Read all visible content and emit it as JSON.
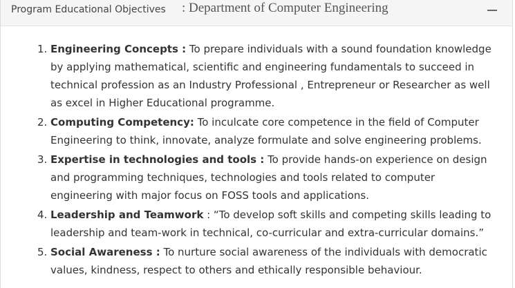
{
  "header": {
    "label": "Program Educational Objectives",
    "separator": ":",
    "department": "Department of Computer Engineering",
    "toggle_icon": "minus-icon"
  },
  "objectives": [
    {
      "number": "1.",
      "title": "Engineering Concepts :",
      "text": " To prepare individuals with a sound foundation knowledge by applying mathematical, scientific and engineering fundamentals to succeed in technical profession as an Industry Professional , Entrepreneur or Researcher as well as excel in Higher Educational programme."
    },
    {
      "number": "2.",
      "title": "Computing Competency:",
      "text": " To inculcate core competence in the field of Computer Engineering to think, innovate, analyze formulate and solve engineering problems."
    },
    {
      "number": "3.",
      "title": "Expertise in technologies and tools :",
      "text": " To provide hands-on experience on design and programming techniques, technologies and tools related to computer engineering with major focus on FOSS tools and applications."
    },
    {
      "number": "4.",
      "title": "Leadership and Teamwork",
      "text": " : “To develop soft skills and competing skills leading to leadership and team-work in technical, co-curricular and extra-curricular domains.”"
    },
    {
      "number": "5.",
      "title": "Social Awareness :",
      "text": " To nurture social awareness of the individuals with democratic values, kindness, respect to others and ethically responsible behaviour."
    }
  ]
}
